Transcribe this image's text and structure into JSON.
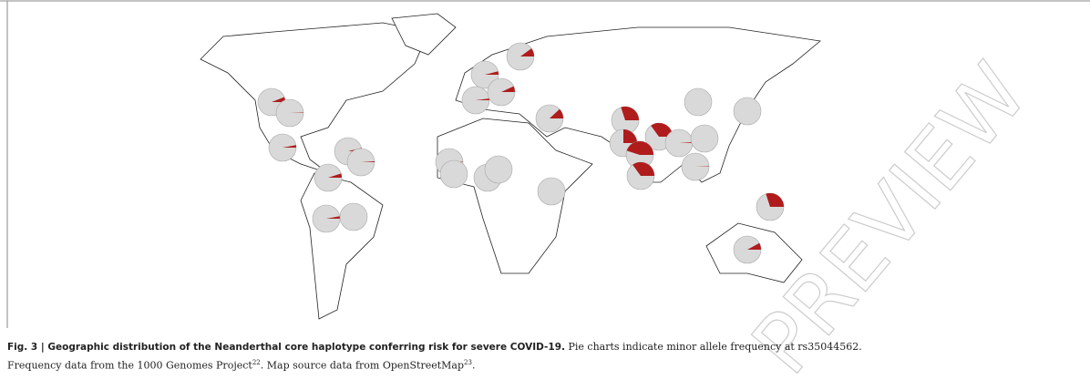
{
  "figure": {
    "pie_frequencies": [
      0.1,
      0.04,
      0.02,
      0.07,
      0.12,
      0.3,
      0.25,
      0.35,
      0.45,
      0.35,
      0.01,
      0,
      0,
      0,
      0.005,
      0.3,
      0.08,
      0.06,
      0.005,
      0.03,
      0.04,
      0.01,
      0.05,
      0.03,
      0,
      0.005,
      0,
      0.005,
      0,
      0
    ]
  },
  "caption": {
    "label": "Fig. 3 | Geographic distribution of the Neanderthal core haplotype conferring risk for severe COVID-19.",
    "text_1": " Pie charts indicate minor allele frequency at rs35044562. Frequency data from the 1000 Genomes Project",
    "ref_1": "22",
    "text_2": ". Map source data from OpenStreetMap",
    "ref_2": "23",
    "text_3": "."
  },
  "watermark": "PREVIEW"
}
